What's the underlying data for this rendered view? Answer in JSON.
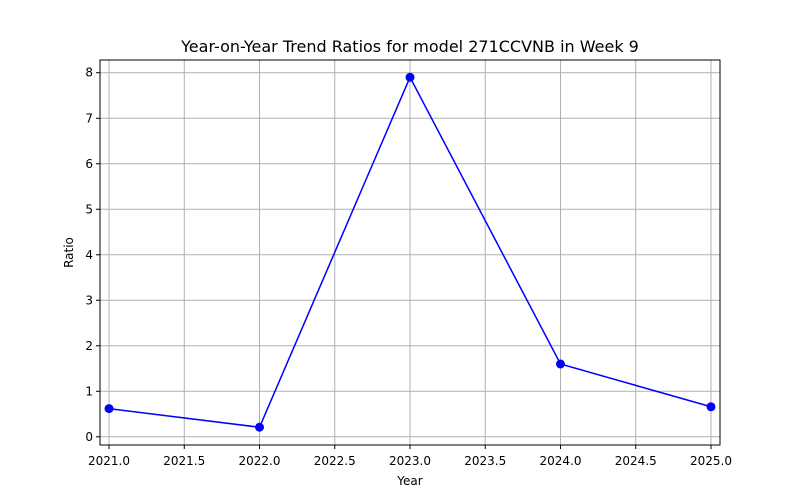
{
  "chart_data": {
    "type": "line",
    "title": "Year-on-Year Trend Ratios for model 271CCVNB in Week 9",
    "xlabel": "Year",
    "ylabel": "Ratio",
    "x": [
      2021,
      2022,
      2023,
      2024,
      2025
    ],
    "series": [
      {
        "values": [
          0.62,
          0.21,
          7.9,
          1.6,
          0.66
        ],
        "color": "#0000ff",
        "marker": "circle"
      }
    ],
    "xlim": [
      2020.94,
      2025.06
    ],
    "ylim": [
      -0.18,
      8.28
    ],
    "xticks": [
      "2021.0",
      "2021.5",
      "2022.0",
      "2022.5",
      "2023.0",
      "2023.5",
      "2024.0",
      "2024.5",
      "2025.0"
    ],
    "yticks": [
      "0",
      "1",
      "2",
      "3",
      "4",
      "5",
      "6",
      "7",
      "8"
    ],
    "grid": true,
    "legend": "none"
  }
}
